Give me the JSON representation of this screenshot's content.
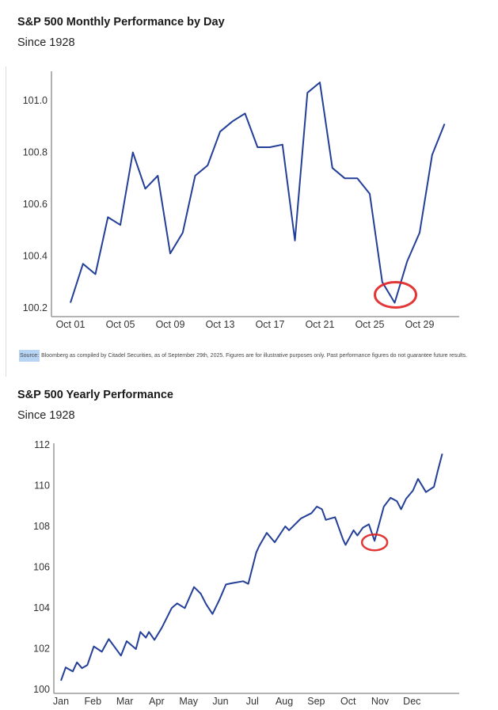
{
  "charts_meta": [
    {
      "title": "S&P 500 Monthly Performance by Day",
      "subtitle": "Since 1928"
    },
    {
      "title": "S&P 500 Yearly Performance",
      "subtitle": "Since 1928"
    }
  ],
  "source": {
    "label": "Source:",
    "text": " Bloomberg as compiled by Citadel Securities, as of September 29th, 2025. Figures are for illustrative purposes only. Past performance figures do not guarantee future results."
  },
  "colors": {
    "line": "#233f97",
    "highlight": "#e02020",
    "axis": "#888888"
  },
  "chart_data": [
    {
      "type": "line",
      "title": "S&P 500 Monthly Performance by Day",
      "subtitle": "Since 1928",
      "x": [
        1,
        2,
        3,
        4,
        5,
        6,
        7,
        8,
        9,
        10,
        11,
        12,
        13,
        14,
        15,
        16,
        17,
        18,
        19,
        20,
        21,
        22,
        23,
        24,
        25,
        26,
        27,
        28,
        29,
        30,
        31
      ],
      "values": [
        100.22,
        100.37,
        100.33,
        100.55,
        100.52,
        100.8,
        100.66,
        100.71,
        100.41,
        100.49,
        100.71,
        100.75,
        100.88,
        100.92,
        100.95,
        100.82,
        100.82,
        100.83,
        100.46,
        101.03,
        101.07,
        100.74,
        100.7,
        100.7,
        100.64,
        100.3,
        100.22,
        100.38,
        100.49,
        100.79,
        100.91
      ],
      "xticks": [
        1,
        5,
        9,
        13,
        17,
        21,
        25,
        29
      ],
      "xtick_labels": [
        "Oct 01",
        "Oct 05",
        "Oct 09",
        "Oct 13",
        "Oct 17",
        "Oct 21",
        "Oct 25",
        "Oct 29"
      ],
      "yticks": [
        100.2,
        100.4,
        100.6,
        100.8,
        101.0
      ],
      "ytick_labels": [
        "100.2",
        "100.4",
        "100.6",
        "100.8",
        "101.0"
      ],
      "ylim": [
        100.2,
        101.0
      ],
      "annotation": {
        "type": "circle",
        "x": 27,
        "y": 100.22
      }
    },
    {
      "type": "line",
      "title": "S&P 500 Yearly Performance",
      "subtitle": "Since 1928",
      "x": [
        0,
        0.15,
        0.37,
        0.5,
        0.66,
        0.83,
        1.03,
        1.28,
        1.5,
        1.88,
        2.06,
        2.35,
        2.49,
        2.66,
        2.76,
        2.93,
        3.16,
        3.47,
        3.64,
        3.88,
        4.17,
        4.38,
        4.55,
        4.75,
        4.96,
        5.17,
        5.38,
        5.71,
        5.87,
        6.12,
        6.21,
        6.45,
        6.7,
        7.03,
        7.15,
        7.52,
        7.85,
        8.02,
        8.18,
        8.3,
        8.59,
        8.84,
        8.92,
        9.17,
        9.29,
        9.46,
        9.65,
        9.83,
        10.12,
        10.33,
        10.53,
        10.66,
        10.82,
        11.03,
        11.19,
        11.44,
        11.69,
        11.81,
        11.95
      ],
      "values": [
        100.43,
        101.08,
        100.88,
        101.33,
        101.04,
        101.2,
        102.11,
        101.85,
        102.47,
        101.66,
        102.37,
        101.98,
        102.82,
        102.54,
        102.82,
        102.43,
        103.02,
        103.99,
        104.22,
        103.99,
        105.02,
        104.7,
        104.18,
        103.7,
        104.38,
        105.15,
        105.22,
        105.31,
        105.18,
        106.71,
        107.03,
        107.68,
        107.22,
        108.0,
        107.81,
        108.39,
        108.65,
        108.97,
        108.84,
        108.32,
        108.45,
        107.35,
        107.09,
        107.81,
        107.55,
        107.93,
        108.1,
        107.29,
        108.97,
        109.4,
        109.23,
        108.84,
        109.36,
        109.75,
        110.33,
        109.68,
        109.94,
        110.72,
        111.56
      ],
      "xticks": [
        0,
        1,
        2,
        3,
        4,
        5,
        6,
        7,
        8,
        9,
        10,
        11
      ],
      "xtick_labels": [
        "Jan",
        "Feb",
        "Mar",
        "Apr",
        "May",
        "Jun",
        "Jul",
        "Aug",
        "Sep",
        "Oct",
        "Nov",
        "Dec"
      ],
      "yticks": [
        100,
        102,
        104,
        106,
        108,
        110,
        112
      ],
      "ytick_labels": [
        "100",
        "102",
        "104",
        "106",
        "108",
        "110",
        "112"
      ],
      "ylim": [
        100,
        112
      ],
      "annotation": {
        "type": "circle",
        "x": 9.83,
        "y": 107.29
      }
    }
  ]
}
